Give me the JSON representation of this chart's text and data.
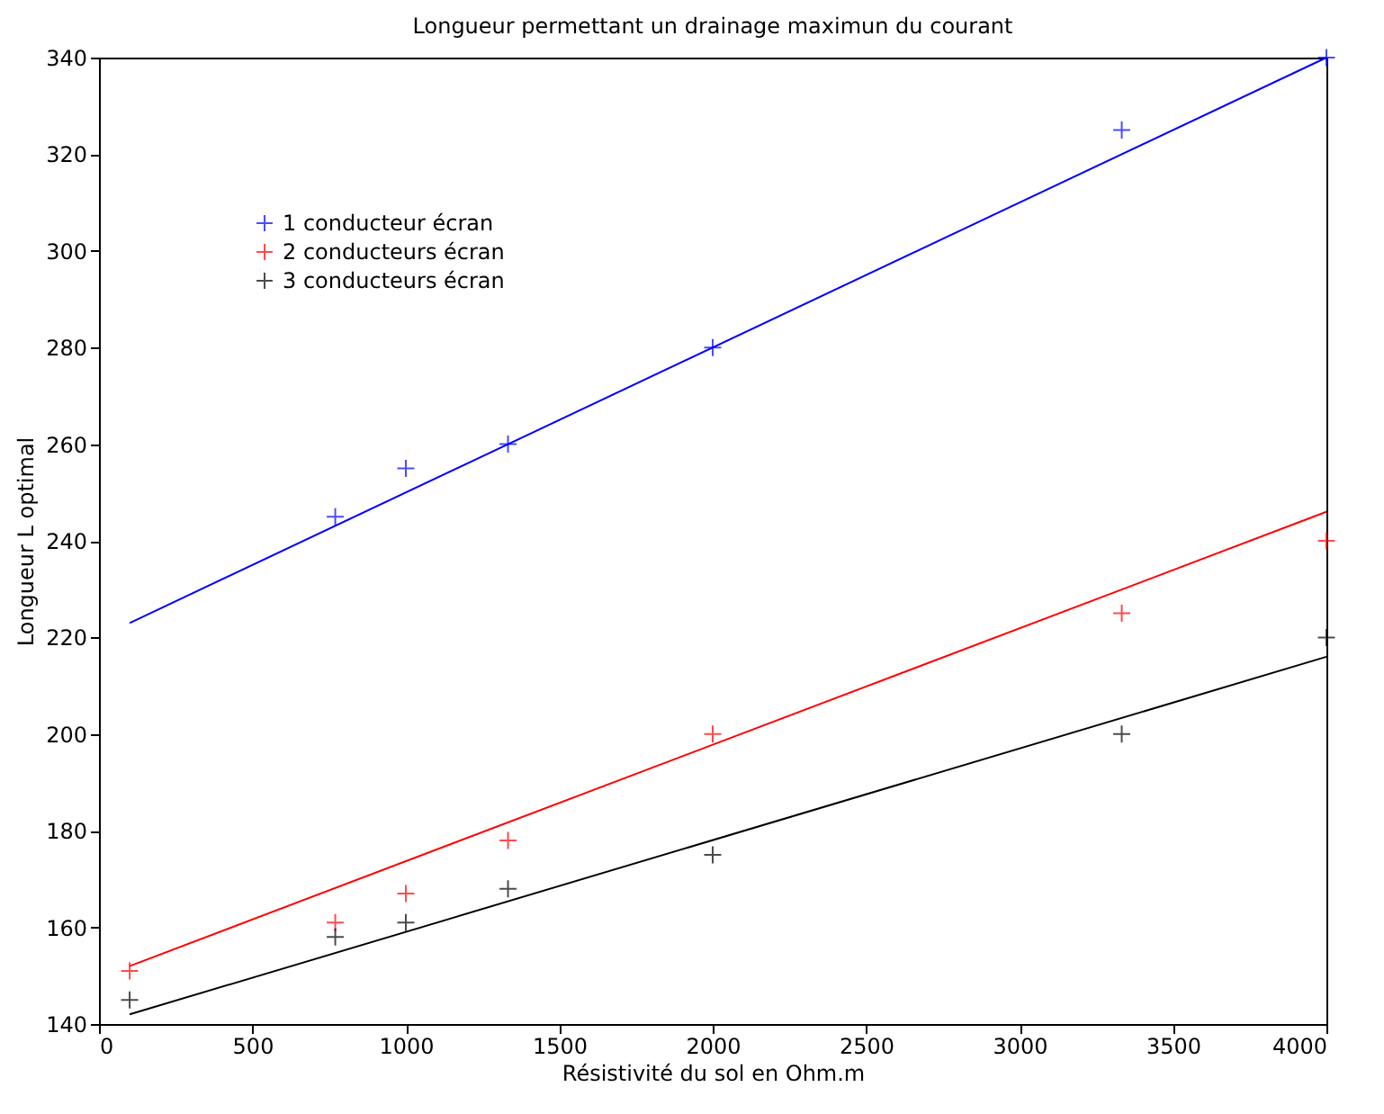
{
  "chart_data": {
    "type": "scatter",
    "title": "Longueur permettant un drainage maximun du courant",
    "xlabel": "Résistivité du sol en Ohm.m",
    "ylabel": "Longueur L optimal",
    "xlim": [
      0,
      4000
    ],
    "xticks": [
      0,
      500,
      1000,
      1500,
      2000,
      2500,
      3000,
      3500,
      4000
    ],
    "ylim": [
      140,
      340
    ],
    "yticks": [
      140,
      160,
      180,
      200,
      220,
      240,
      260,
      280,
      300,
      320,
      340
    ],
    "grid": false,
    "legend": "top left",
    "marker": "cross",
    "series": [
      {
        "name": "1 conducteur écran",
        "color": "#0000ff",
        "x": [
          770,
          1000,
          1333,
          2000,
          3333,
          4000
        ],
        "values": [
          245,
          255,
          260,
          280,
          325,
          340
        ]
      },
      {
        "name": "2 conducteurs écran",
        "color": "#ff0000",
        "x": [
          100,
          770,
          1000,
          1333,
          2000,
          3333,
          4000
        ],
        "values": [
          151,
          161,
          167,
          178,
          200,
          225,
          240
        ]
      },
      {
        "name": "3 conducteurs écran",
        "color": "#000000",
        "x": [
          100,
          770,
          1000,
          1333,
          2000,
          3333,
          4000
        ],
        "values": [
          145,
          158,
          161,
          168,
          175,
          200,
          220
        ]
      },
      {
        "type": "line",
        "marker": "none",
        "color": "#0000ff",
        "x": [
          100,
          4000
        ],
        "values": [
          223,
          340
        ]
      },
      {
        "type": "line",
        "marker": "none",
        "color": "#ff0000",
        "x": [
          100,
          4000
        ],
        "values": [
          152,
          246
        ]
      },
      {
        "type": "line",
        "marker": "none",
        "color": "#000000",
        "x": [
          100,
          4000
        ],
        "values": [
          142,
          216
        ]
      }
    ]
  }
}
